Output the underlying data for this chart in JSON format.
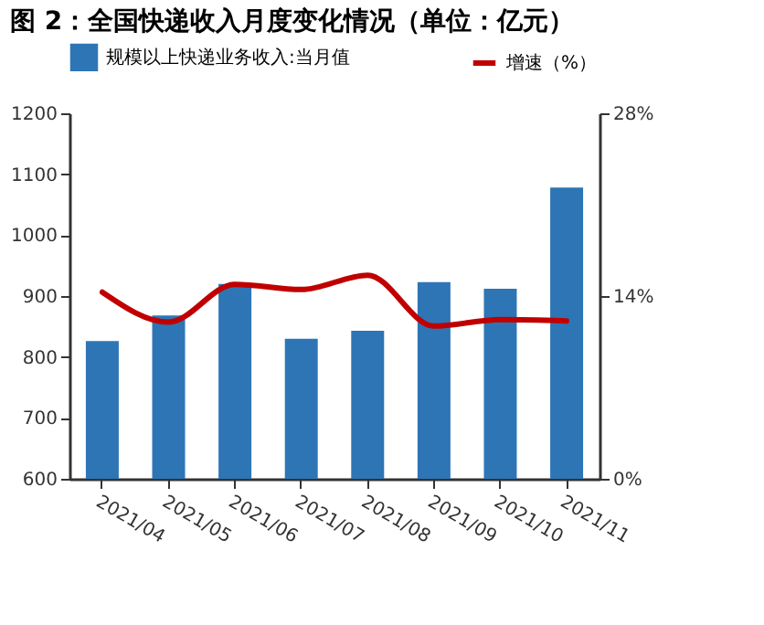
{
  "chart_data": {
    "type": "bar",
    "title": "图  2：全国快递收入月度变化情况（单位：亿元）",
    "categories": [
      "2021/04",
      "2021/05",
      "2021/06",
      "2021/07",
      "2021/08",
      "2021/09",
      "2021/10",
      "2021/11"
    ],
    "series": [
      {
        "name": "规模以上快递业务收入:当月值",
        "color": "#2e75b6",
        "values": [
          826,
          868,
          920,
          830,
          843,
          923,
          912,
          1078
        ]
      },
      {
        "name": "增速（%）",
        "color": "#c00000",
        "type": "line",
        "axis": "y2",
        "values": [
          14.3,
          12.0,
          14.9,
          14.5,
          15.6,
          11.7,
          12.2,
          12.1
        ]
      }
    ],
    "ylim": [
      600,
      1200
    ],
    "yticks": [
      600,
      700,
      800,
      900,
      1000,
      1100,
      1200
    ],
    "y2lim": [
      0,
      28
    ],
    "y2ticks": [
      {
        "value": 0,
        "label": "0%"
      },
      {
        "value": 14,
        "label": "14%"
      },
      {
        "value": 28,
        "label": "28%"
      }
    ],
    "grid": false,
    "legend": "top"
  }
}
